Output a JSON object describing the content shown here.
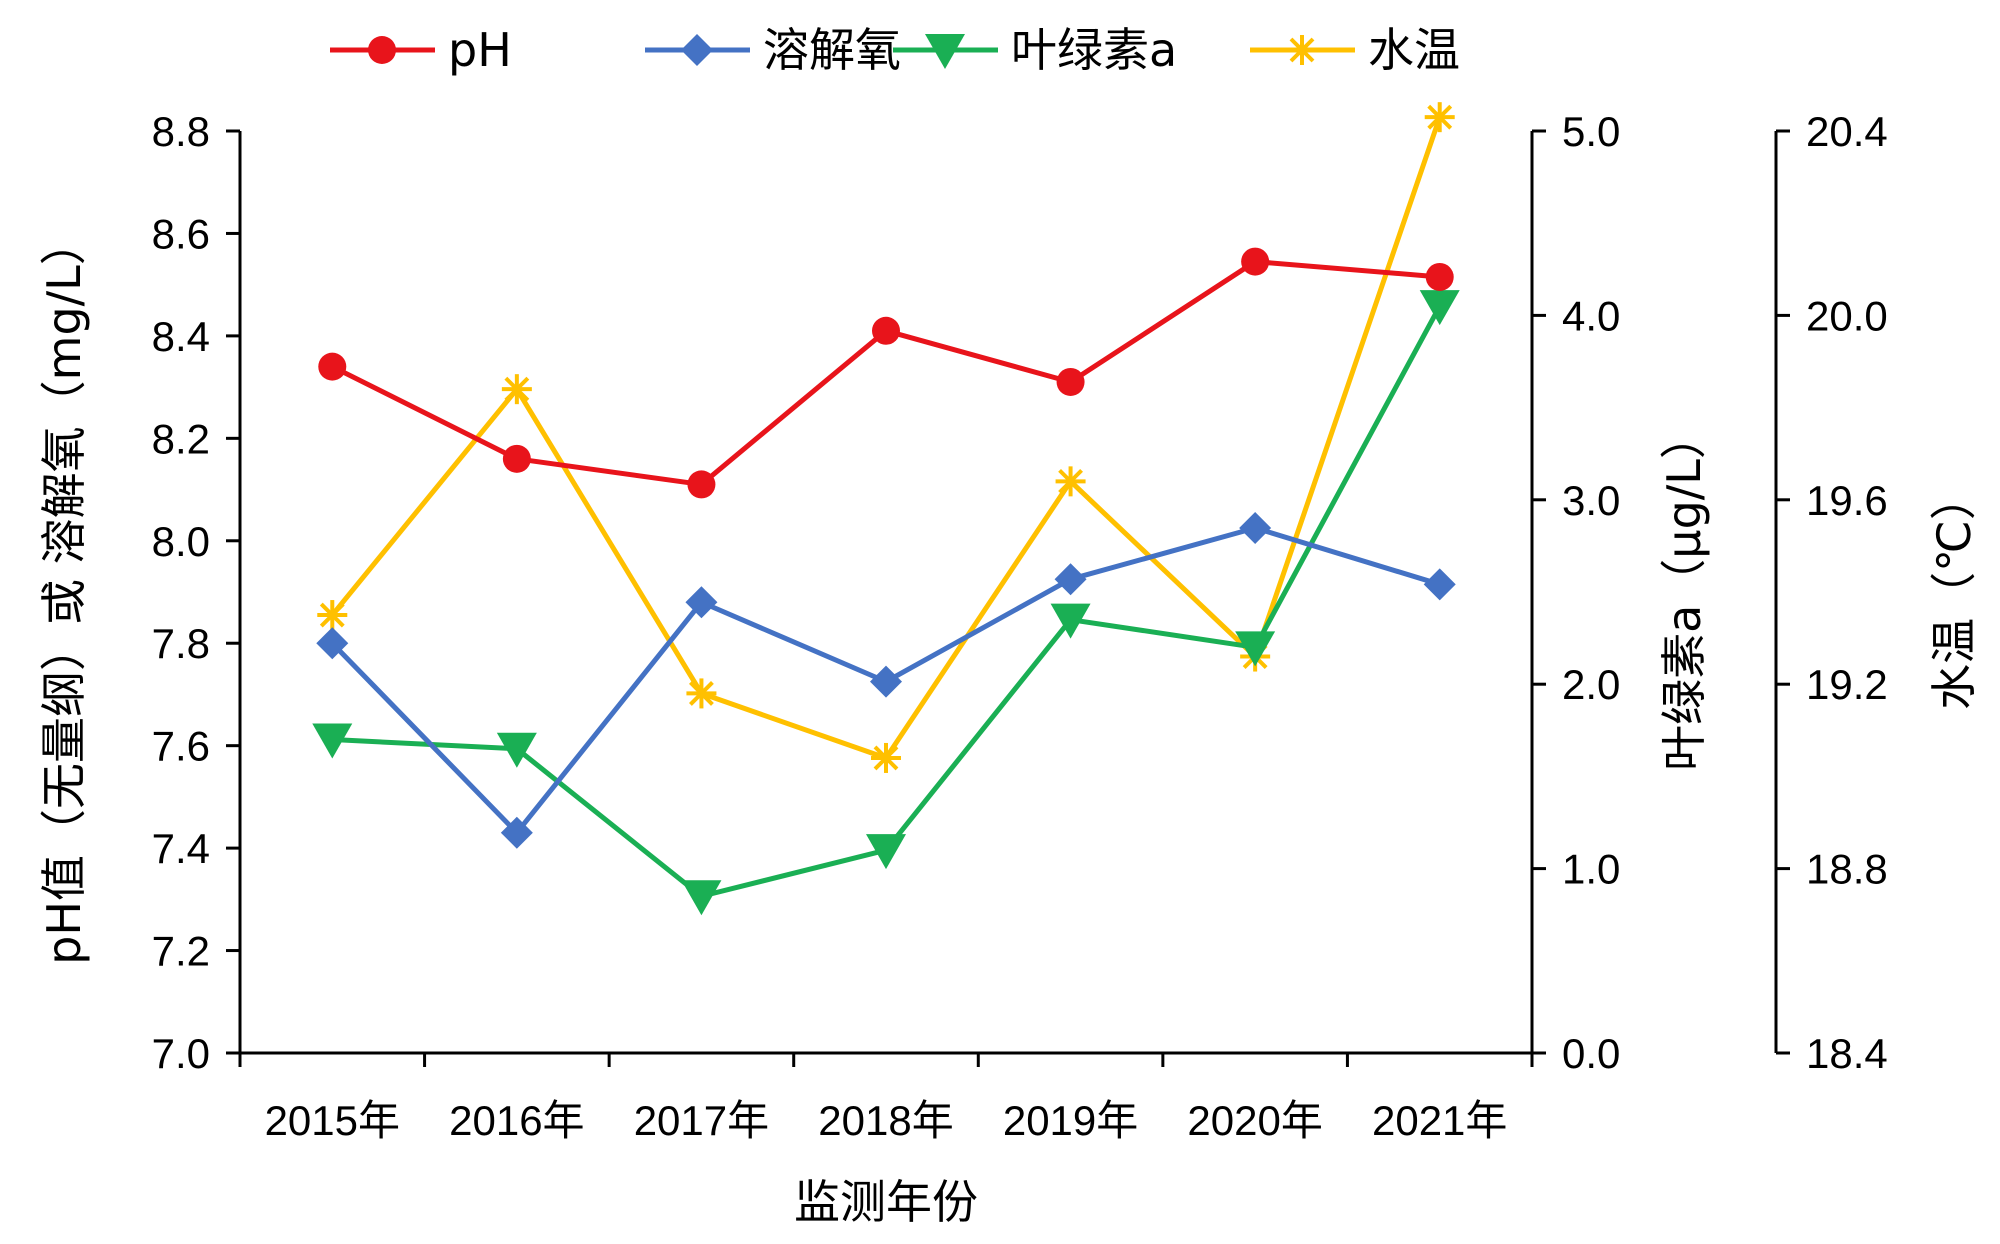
{
  "chart_data": {
    "type": "line",
    "categories": [
      "2015年",
      "2016年",
      "2017年",
      "2018年",
      "2019年",
      "2020年",
      "2021年"
    ],
    "xlabel": "监测年份",
    "axes": {
      "left": {
        "label": "pH值（无量纲）或 溶解氧（mg/L）",
        "min": 7.0,
        "max": 8.8,
        "step": 0.2,
        "ticks": [
          "7.0",
          "7.2",
          "7.4",
          "7.6",
          "7.8",
          "8.0",
          "8.2",
          "8.4",
          "8.6",
          "8.8"
        ]
      },
      "right1": {
        "label": "叶绿素a（μg/L）",
        "min": 0.0,
        "max": 5.0,
        "step": 1.0,
        "ticks": [
          "0.0",
          "1.0",
          "2.0",
          "3.0",
          "4.0",
          "5.0"
        ]
      },
      "right2": {
        "label": "水温（℃）",
        "min": 18.4,
        "max": 20.4,
        "step": 0.4,
        "ticks": [
          "18.4",
          "18.8",
          "19.2",
          "19.6",
          "20.0",
          "20.4"
        ]
      }
    },
    "series": [
      {
        "name": "pH",
        "axis": "left",
        "color": "#E8141B",
        "marker": "circle",
        "values": [
          8.34,
          8.16,
          8.11,
          8.41,
          8.31,
          8.545,
          8.515
        ]
      },
      {
        "name": "溶解氧",
        "axis": "left",
        "color": "#4472C4",
        "marker": "diamond",
        "values": [
          7.8,
          7.43,
          7.88,
          7.725,
          7.925,
          8.025,
          7.915
        ]
      },
      {
        "name": "叶绿素a",
        "axis": "right1",
        "color": "#1AAF54",
        "marker": "triangle-down",
        "values": [
          1.7,
          1.65,
          0.85,
          1.1,
          2.35,
          2.2,
          4.05
        ]
      },
      {
        "name": "水温",
        "axis": "right2",
        "color": "#FFC000",
        "marker": "asterisk",
        "values": [
          19.35,
          19.84,
          19.18,
          19.04,
          19.64,
          19.26,
          20.43
        ]
      }
    ],
    "legend_position": "top"
  }
}
